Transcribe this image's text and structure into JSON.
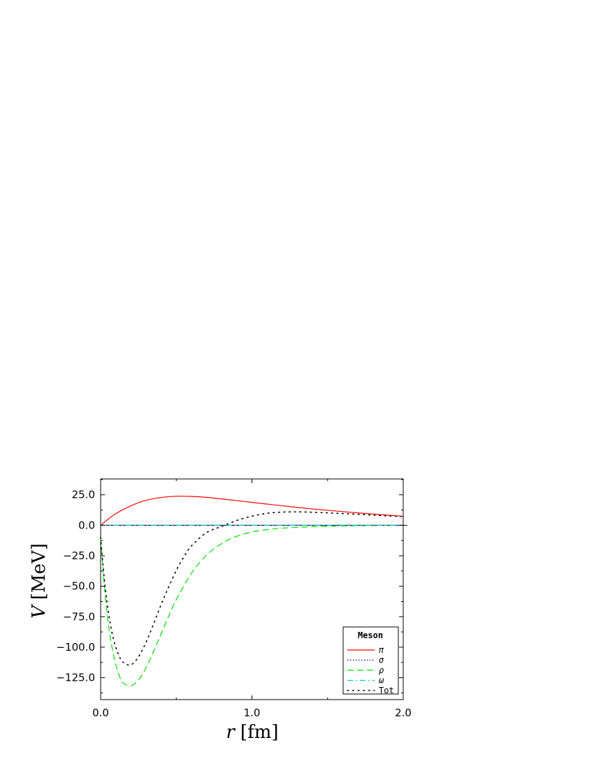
{
  "chart_data": {
    "type": "line",
    "xlabel_var": "r",
    "xlabel_unit": "[fm]",
    "ylabel_var": "V",
    "ylabel_unit": "[MeV]",
    "xlim": [
      0.0,
      2.0
    ],
    "ylim": [
      -143,
      38
    ],
    "x_ticks": [
      {
        "value": 0.0,
        "label": "0.0"
      },
      {
        "value": 1.0,
        "label": "1.0"
      },
      {
        "value": 2.0,
        "label": "2.0"
      }
    ],
    "y_ticks": [
      {
        "value": 25,
        "label": "25.0"
      },
      {
        "value": 0,
        "label": "0.0"
      },
      {
        "value": -25,
        "label": "−25.0"
      },
      {
        "value": -50,
        "label": "−50.0"
      },
      {
        "value": -75,
        "label": "−75.0"
      },
      {
        "value": -100,
        "label": "−100.0"
      },
      {
        "value": -125,
        "label": "−125.0"
      }
    ],
    "grid": false,
    "legend": {
      "title": "Meson",
      "position": "bottom-right"
    },
    "series": [
      {
        "name": "π",
        "color": "#ff0000",
        "style": "solid",
        "x": [
          0.0,
          0.05,
          0.1,
          0.2,
          0.3,
          0.4,
          0.5,
          0.6,
          0.7,
          0.8,
          0.9,
          1.0,
          1.2,
          1.4,
          1.6,
          1.8,
          2.0
        ],
        "y": [
          0.0,
          5.0,
          9.5,
          16.0,
          20.5,
          22.8,
          23.8,
          23.7,
          22.9,
          21.6,
          20.2,
          18.8,
          16.0,
          13.4,
          11.2,
          9.2,
          7.4
        ]
      },
      {
        "name": "σ",
        "color": "#0000aa",
        "style": "dotted",
        "x": [
          0.0,
          2.0
        ],
        "y": [
          0.0,
          0.0
        ]
      },
      {
        "name": "ρ",
        "color": "#00dd00",
        "style": "dashed",
        "x": [
          0.0,
          0.025,
          0.05,
          0.075,
          0.1,
          0.125,
          0.15,
          0.2,
          0.25,
          0.3,
          0.35,
          0.4,
          0.45,
          0.5,
          0.6,
          0.7,
          0.8,
          0.9,
          1.0,
          1.1,
          1.2,
          1.3,
          1.4,
          1.5,
          1.6,
          1.8,
          2.0
        ],
        "y": [
          -10,
          -50,
          -80,
          -100,
          -114,
          -124,
          -129.5,
          -131.5,
          -127,
          -117,
          -103.5,
          -89,
          -74.5,
          -61,
          -39.5,
          -24.5,
          -15,
          -9,
          -5.5,
          -3.6,
          -2.4,
          -1.7,
          -1.2,
          -0.8,
          -0.5,
          -0.2,
          -0.05
        ]
      },
      {
        "name": "ω",
        "color": "#00c8c8",
        "style": "dashdot",
        "x": [
          0.0,
          2.0
        ],
        "y": [
          0.0,
          0.0
        ]
      },
      {
        "name": "Tot",
        "color": "#000000",
        "style": "sparse-dotted",
        "x": [
          0.0,
          0.025,
          0.05,
          0.075,
          0.1,
          0.125,
          0.15,
          0.2,
          0.25,
          0.3,
          0.35,
          0.4,
          0.45,
          0.5,
          0.55,
          0.6,
          0.7,
          0.8,
          0.85,
          0.9,
          1.0,
          1.1,
          1.2,
          1.3,
          1.4,
          1.5,
          1.6,
          1.7,
          1.8,
          1.9,
          2.0
        ],
        "y": [
          -10,
          -45,
          -70,
          -88,
          -100,
          -108,
          -112.5,
          -114.5,
          -108,
          -96,
          -81,
          -65,
          -50.5,
          -37,
          -26,
          -17,
          -6,
          -1,
          1.5,
          4,
          7.5,
          9.8,
          10.8,
          11.0,
          10.7,
          10.2,
          9.6,
          9.0,
          8.3,
          7.7,
          7.1
        ]
      }
    ]
  }
}
